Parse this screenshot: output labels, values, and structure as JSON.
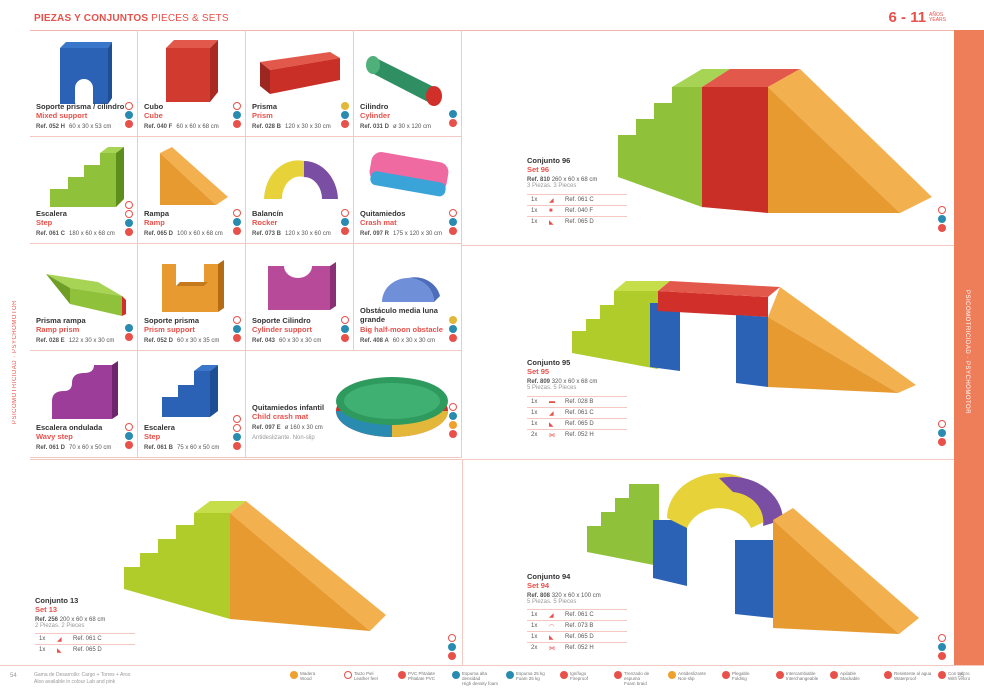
{
  "header": {
    "title": "PIEZAS Y CONJUNTOS",
    "subtitle": "PIECES & SETS",
    "age": "6 - 11",
    "age_es": "AÑOS",
    "age_en": "YEARS"
  },
  "side_left": "PSICOMOTRICIDAD · PSYCHOMOTOR",
  "side_right": "PSICOMOTRICIDAD · PSYCHOMOTOR",
  "products": [
    {
      "name": "Soporte prisma / cilindro",
      "en": "Mixed support",
      "ref": "Ref. 052 H",
      "dim": "60 x 30 x 53 cm"
    },
    {
      "name": "Cubo",
      "en": "Cube",
      "ref": "Ref. 040 F",
      "dim": "60 x 60 x 68 cm"
    },
    {
      "name": "Prisma",
      "en": "Prism",
      "ref": "Ref. 028 B",
      "dim": "120 x 30 x 30 cm"
    },
    {
      "name": "Cilindro",
      "en": "Cylinder",
      "ref": "Ref. 031 D",
      "dim": "ø 30 x 120 cm"
    },
    {
      "name": "Escalera",
      "en": "Step",
      "ref": "Ref. 061 C",
      "dim": "180 x 60 x 68 cm"
    },
    {
      "name": "Rampa",
      "en": "Ramp",
      "ref": "Ref. 065 D",
      "dim": "100 x 60 x 68 cm"
    },
    {
      "name": "Balancín",
      "en": "Rocker",
      "ref": "Ref. 073 B",
      "dim": "120 x 30 x 60 cm"
    },
    {
      "name": "Quitamiedos",
      "en": "Crash mat",
      "ref": "Ref. 097 R",
      "dim": "175 x 120 x 30 cm"
    },
    {
      "name": "Prisma rampa",
      "en": "Ramp prism",
      "ref": "Ref. 028 E",
      "dim": "122 x 30 x 30 cm"
    },
    {
      "name": "Soporte prisma",
      "en": "Prism support",
      "ref": "Ref. 052 D",
      "dim": "60 x 30 x 35 cm"
    },
    {
      "name": "Soporte Cilindro",
      "en": "Cylinder support",
      "ref": "Ref. 043",
      "dim": "60 x 30 x 30 cm"
    },
    {
      "name": "Obstáculo media luna grande",
      "en": "Big half-moon obstacle",
      "ref": "Ref. 408 A",
      "dim": "60 x 30 x 30 cm"
    },
    {
      "name": "Escalera ondulada",
      "en": "Wavy step",
      "ref": "Ref. 061 D",
      "dim": "70 x 60 x 50 cm"
    },
    {
      "name": "Escalera",
      "en": "Step",
      "ref": "Ref. 061 B",
      "dim": "75 x 60 x 50 cm"
    },
    {
      "name": "Quitamiedos infantil",
      "en": "Child crash mat",
      "ref": "Ref. 097 E",
      "dim": "ø 160 x 30 cm",
      "extra": "Antideslizante. Non-slip"
    }
  ],
  "sets": [
    {
      "name": "Conjunto 96",
      "en": "Set 96",
      "ref": "Ref. 810",
      "dim": "260 x 60 x 68 cm",
      "pieces": "3 Piezas. 3 Pieces",
      "items": [
        [
          "1x",
          "Ref. 061 C"
        ],
        [
          "1x",
          "Ref. 040 F"
        ],
        [
          "1x",
          "Ref. 065 D"
        ]
      ]
    },
    {
      "name": "Conjunto 95",
      "en": "Set 95",
      "ref": "Ref. 809",
      "dim": "320 x 60 x 68 cm",
      "pieces": "5 Piezas. 5 Pieces",
      "items": [
        [
          "1x",
          "Ref. 028 B"
        ],
        [
          "1x",
          "Ref. 061 C"
        ],
        [
          "1x",
          "Ref. 065 D"
        ],
        [
          "2x",
          "Ref. 052 H"
        ]
      ]
    },
    {
      "name": "Conjunto 13",
      "en": "Set 13",
      "ref": "Ref. 256",
      "dim": "200 x 60 x 68 cm",
      "pieces": "2 Piezas. 2 Pieces",
      "items": [
        [
          "1x",
          "Ref. 061 C"
        ],
        [
          "1x",
          "Ref. 065 D"
        ]
      ]
    },
    {
      "name": "Conjunto 94",
      "en": "Set 94",
      "ref": "Ref. 808",
      "dim": "320 x 60 x 100 cm",
      "pieces": "5 Piezas. 5 Pieces",
      "items": [
        [
          "1x",
          "Ref. 061 C"
        ],
        [
          "1x",
          "Ref. 073 B"
        ],
        [
          "1x",
          "Ref. 065 D"
        ],
        [
          "2x",
          "Ref. 052 H"
        ]
      ]
    }
  ],
  "footer": {
    "line1": "Gama de Desarrollo: Cargo + Torres + Aros",
    "line2": "Also available in colour Lab and pink",
    "page_left": "54",
    "page_right": "55",
    "legend": [
      {
        "es": "Madera",
        "en": "Wood"
      },
      {
        "es": "Tacto Piel",
        "en": "Leather feel"
      },
      {
        "es": "PVC Phtalate",
        "en": "Phtalate PVC"
      },
      {
        "es": "Espuma alta densidad",
        "en": "High density foam"
      },
      {
        "es": "Espuma 25 kg",
        "en": "Foam 25 kg"
      },
      {
        "es": "Ignífugo",
        "en": "Fireproof"
      },
      {
        "es": "Trenzado de espuma",
        "en": "Foam braid"
      },
      {
        "es": "Antideslizante",
        "en": "Non-slip"
      },
      {
        "es": "Plegable",
        "en": "Folding"
      },
      {
        "es": "Intercambiable",
        "en": "Interchangeable"
      },
      {
        "es": "Apilable",
        "en": "Stackable"
      },
      {
        "es": "Resistente al agua",
        "en": "Waterproof"
      },
      {
        "es": "Con velcro",
        "en": "With velcro"
      }
    ]
  }
}
